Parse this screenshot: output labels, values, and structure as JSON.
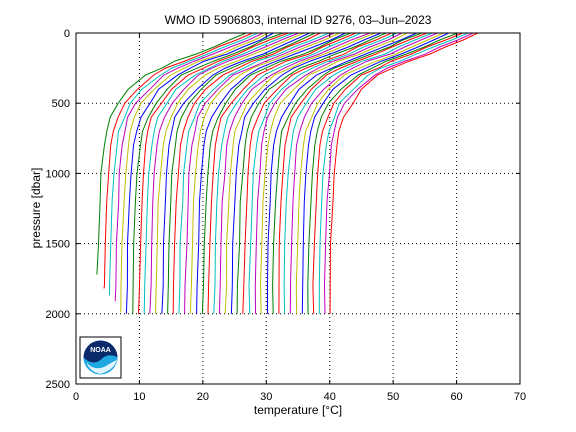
{
  "chart_data": {
    "type": "line",
    "title": "WMO ID 5906803, internal ID 9276, 03–Jun–2023",
    "xlabel": "temperature [°C]",
    "ylabel": "pressure [dbar]",
    "xlim": [
      0,
      70
    ],
    "ylim": [
      2500,
      0
    ],
    "y_reversed": true,
    "grid": true,
    "grid_style": "dotted",
    "xticks": [
      "0",
      "10",
      "20",
      "30",
      "40",
      "50",
      "60",
      "70"
    ],
    "yticks": [
      "0",
      "500",
      "1000",
      "1500",
      "2000",
      "2500"
    ],
    "profile_pressures": [
      0,
      50,
      100,
      150,
      200,
      250,
      300,
      400,
      500,
      600,
      700,
      800,
      1000,
      1200,
      1500,
      1800,
      2000
    ],
    "profile_shape": [
      23.4,
      20.8,
      18.2,
      15.6,
      12.5,
      10.0,
      7.8,
      5.2,
      3.4,
      2.2,
      1.5,
      1.1,
      0.7,
      0.45,
      0.2,
      0.05,
      0.0
    ],
    "series": [
      {
        "deep_temp": 3.3,
        "color": "#008000",
        "max_pressure": 1720
      },
      {
        "deep_temp": 4.4,
        "color": "#ff0000",
        "max_pressure": 1820
      },
      {
        "deep_temp": 5.3,
        "color": "#00bfbf",
        "max_pressure": 1870
      },
      {
        "deep_temp": 6.2,
        "color": "#bf00bf",
        "max_pressure": 1910
      },
      {
        "deep_temp": 7.1,
        "color": "#bfbf00",
        "max_pressure": 1990
      },
      {
        "deep_temp": 8.0,
        "color": "#0000ff",
        "max_pressure": 2000
      },
      {
        "deep_temp": 9.0,
        "color": "#008000",
        "max_pressure": 2000
      },
      {
        "deep_temp": 9.9,
        "color": "#ff0000",
        "max_pressure": 2000
      },
      {
        "deep_temp": 10.8,
        "color": "#00bfbf",
        "max_pressure": 2000
      },
      {
        "deep_temp": 11.7,
        "color": "#bf00bf",
        "max_pressure": 2000
      },
      {
        "deep_temp": 12.6,
        "color": "#bfbf00",
        "max_pressure": 2000
      },
      {
        "deep_temp": 13.6,
        "color": "#0000ff",
        "max_pressure": 2000
      },
      {
        "deep_temp": 14.5,
        "color": "#008000",
        "max_pressure": 2000
      },
      {
        "deep_temp": 15.4,
        "color": "#ff0000",
        "max_pressure": 2000
      },
      {
        "deep_temp": 16.3,
        "color": "#00bfbf",
        "max_pressure": 2000
      },
      {
        "deep_temp": 17.2,
        "color": "#bf00bf",
        "max_pressure": 2000
      },
      {
        "deep_temp": 18.1,
        "color": "#bfbf00",
        "max_pressure": 2000
      },
      {
        "deep_temp": 19.1,
        "color": "#0000ff",
        "max_pressure": 2000
      },
      {
        "deep_temp": 20.0,
        "color": "#008000",
        "max_pressure": 2000
      },
      {
        "deep_temp": 20.9,
        "color": "#ff0000",
        "max_pressure": 2000
      },
      {
        "deep_temp": 21.8,
        "color": "#00bfbf",
        "max_pressure": 2000
      },
      {
        "deep_temp": 22.7,
        "color": "#bf00bf",
        "max_pressure": 2000
      },
      {
        "deep_temp": 23.6,
        "color": "#bfbf00",
        "max_pressure": 2000
      },
      {
        "deep_temp": 24.6,
        "color": "#0000ff",
        "max_pressure": 2000
      },
      {
        "deep_temp": 25.5,
        "color": "#008000",
        "max_pressure": 2000
      },
      {
        "deep_temp": 26.4,
        "color": "#ff0000",
        "max_pressure": 2000
      },
      {
        "deep_temp": 27.3,
        "color": "#00bfbf",
        "max_pressure": 2000
      },
      {
        "deep_temp": 28.2,
        "color": "#bf00bf",
        "max_pressure": 2000
      },
      {
        "deep_temp": 29.1,
        "color": "#bfbf00",
        "max_pressure": 2000
      },
      {
        "deep_temp": 30.1,
        "color": "#0000ff",
        "max_pressure": 2000
      },
      {
        "deep_temp": 31.0,
        "color": "#008000",
        "max_pressure": 2000
      },
      {
        "deep_temp": 31.9,
        "color": "#ff0000",
        "max_pressure": 2000
      },
      {
        "deep_temp": 32.8,
        "color": "#00bfbf",
        "max_pressure": 2000
      },
      {
        "deep_temp": 33.7,
        "color": "#bf00bf",
        "max_pressure": 2000
      },
      {
        "deep_temp": 34.7,
        "color": "#bfbf00",
        "max_pressure": 2000
      },
      {
        "deep_temp": 35.6,
        "color": "#0000ff",
        "max_pressure": 2000
      },
      {
        "deep_temp": 36.5,
        "color": "#008000",
        "max_pressure": 2000
      },
      {
        "deep_temp": 37.4,
        "color": "#ff0000",
        "max_pressure": 2000
      },
      {
        "deep_temp": 38.3,
        "color": "#00bfbf",
        "max_pressure": 2000
      },
      {
        "deep_temp": 39.2,
        "color": "#bf00bf",
        "max_pressure": 2000
      },
      {
        "deep_temp": 40.0,
        "color": "#ff0000",
        "max_pressure": 2000
      }
    ]
  },
  "logo": {
    "text": "NOAA",
    "colors": [
      "#0a2a6b",
      "#1ea7e1",
      "#ffffff"
    ]
  }
}
